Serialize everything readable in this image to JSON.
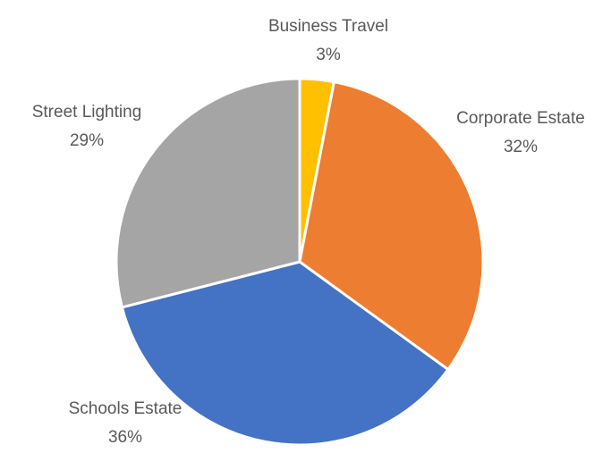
{
  "chart_data": {
    "type": "pie",
    "categories": [
      "Business Travel",
      "Corporate Estate",
      "Schools Estate",
      "Street Lighting"
    ],
    "values": [
      3,
      32,
      36,
      29
    ],
    "value_labels": [
      "3%",
      "32%",
      "36%",
      "29%"
    ],
    "colors": [
      "#ffc000",
      "#ed7d31",
      "#4472c4",
      "#a5a5a5"
    ]
  }
}
